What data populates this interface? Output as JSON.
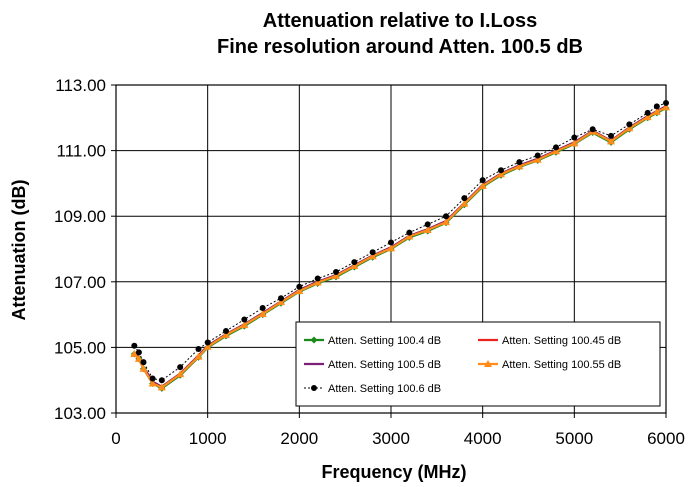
{
  "chart_data": {
    "type": "line",
    "title": "Attenuation relative to I.Loss",
    "subtitle": "Fine resolution around Atten. 100.5 dB",
    "xlabel": "Frequency (MHz)",
    "ylabel": "Attenuation (dB)",
    "xlim": [
      0,
      6000
    ],
    "ylim": [
      103,
      113
    ],
    "x_ticks": [
      0,
      1000,
      2000,
      3000,
      4000,
      5000,
      6000
    ],
    "x_tick_labels": [
      "0",
      "1000",
      "2000",
      "3000",
      "4000",
      "5000",
      "6000"
    ],
    "y_ticks": [
      103,
      105,
      107,
      109,
      111,
      113
    ],
    "y_tick_labels": [
      "103.00",
      "105.00",
      "107.00",
      "109.00",
      "111.00",
      "113.00"
    ],
    "grid": true,
    "legend_position": "bottom-right",
    "x": [
      200,
      250,
      300,
      400,
      500,
      700,
      900,
      1000,
      1200,
      1400,
      1600,
      1800,
      2000,
      2200,
      2400,
      2600,
      2800,
      3000,
      3200,
      3400,
      3600,
      3800,
      4000,
      4200,
      4400,
      4600,
      4800,
      5000,
      5200,
      5400,
      5600,
      5800,
      5900,
      6000
    ],
    "series": [
      {
        "name": "Atten. Setting 100.4 dB",
        "color": "#1a8a1a",
        "marker": "diamond",
        "values": [
          104.8,
          104.65,
          104.35,
          103.9,
          103.75,
          104.15,
          104.7,
          105.0,
          105.35,
          105.65,
          106.0,
          106.35,
          106.7,
          106.95,
          107.15,
          107.45,
          107.75,
          108.0,
          108.35,
          108.55,
          108.8,
          109.35,
          109.9,
          110.25,
          110.5,
          110.7,
          110.95,
          111.2,
          111.55,
          111.25,
          111.65,
          112.0,
          112.15,
          112.3
        ]
      },
      {
        "name": "Atten. Setting 100.45 dB",
        "color": "#e8251e",
        "marker": "none",
        "values": [
          104.85,
          104.7,
          104.4,
          103.95,
          103.8,
          104.2,
          104.75,
          105.05,
          105.4,
          105.7,
          106.05,
          106.4,
          106.75,
          107.0,
          107.2,
          107.5,
          107.8,
          108.05,
          108.4,
          108.6,
          108.85,
          109.4,
          109.95,
          110.3,
          110.55,
          110.75,
          111.0,
          111.25,
          111.6,
          111.3,
          111.7,
          112.05,
          112.2,
          112.35
        ]
      },
      {
        "name": "Atten. Setting 100.5 dB",
        "color": "#7b1f7b",
        "marker": "none",
        "values": [
          104.85,
          104.7,
          104.4,
          103.95,
          103.8,
          104.2,
          104.75,
          105.05,
          105.4,
          105.7,
          106.05,
          106.4,
          106.75,
          107.0,
          107.2,
          107.5,
          107.8,
          108.05,
          108.4,
          108.6,
          108.85,
          109.4,
          109.95,
          110.3,
          110.55,
          110.75,
          111.0,
          111.25,
          111.6,
          111.3,
          111.7,
          112.05,
          112.2,
          112.35
        ]
      },
      {
        "name": "Atten. Setting 100.55 dB",
        "color": "#ff8c1a",
        "marker": "triangle",
        "values": [
          104.8,
          104.65,
          104.35,
          103.9,
          103.78,
          104.18,
          104.72,
          105.02,
          105.38,
          105.68,
          106.02,
          106.38,
          106.72,
          106.98,
          107.18,
          107.48,
          107.78,
          108.02,
          108.38,
          108.58,
          108.82,
          109.38,
          109.92,
          110.28,
          110.52,
          110.72,
          110.98,
          111.22,
          111.58,
          111.28,
          111.68,
          112.02,
          112.18,
          112.32
        ]
      },
      {
        "name": "Atten. Setting 100.6 dB",
        "color": "#000000",
        "marker": "circle",
        "dashed": true,
        "values": [
          105.05,
          104.85,
          104.55,
          104.05,
          104.0,
          104.4,
          104.95,
          105.15,
          105.5,
          105.85,
          106.2,
          106.5,
          106.85,
          107.1,
          107.3,
          107.6,
          107.9,
          108.2,
          108.5,
          108.75,
          109.0,
          109.55,
          110.1,
          110.4,
          110.65,
          110.85,
          111.1,
          111.4,
          111.65,
          111.45,
          111.8,
          112.15,
          112.35,
          112.45
        ]
      }
    ]
  }
}
